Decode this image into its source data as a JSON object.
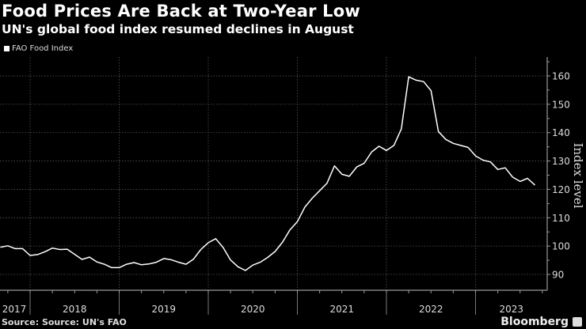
{
  "header": {
    "title": "Food Prices Are Back at Two-Year Low",
    "subtitle": "UN's global food index resumed declines in August"
  },
  "footer": {
    "source": "Source: Source: UN's FAO",
    "brand": "Bloomberg"
  },
  "colors": {
    "background": "#000000",
    "line": "#ffffff",
    "grid": "#555555",
    "axis": "#888888"
  },
  "chart_data": {
    "type": "line",
    "title": "Food Prices Are Back at Two-Year Low",
    "subtitle": "UN's global food index resumed declines in August",
    "legend": {
      "entries": [
        "FAO Food Index"
      ],
      "placement": "top-left"
    },
    "ylabel": "Index level",
    "ylim": [
      85,
      165
    ],
    "y_ticks": [
      90,
      100,
      110,
      120,
      130,
      140,
      150,
      160
    ],
    "y_axis_side": "right",
    "x_tick_labels": [
      "2017",
      "2018",
      "2019",
      "2020",
      "2021",
      "2022",
      "2023"
    ],
    "grid": true,
    "series": [
      {
        "name": "FAO Food Index",
        "start": "2017-08",
        "frequency": "monthly",
        "values": [
          99.6,
          100.1,
          99.1,
          99.1,
          96.7,
          97.0,
          98.0,
          99.3,
          98.8,
          98.9,
          97.1,
          95.3,
          96.1,
          94.4,
          93.6,
          92.4,
          92.4,
          93.6,
          94.2,
          93.4,
          93.7,
          94.3,
          95.6,
          95.2,
          94.3,
          93.6,
          95.4,
          98.8,
          101.2,
          102.6,
          99.5,
          95.1,
          92.7,
          91.4,
          93.3,
          94.3,
          96.0,
          98.1,
          101.4,
          105.7,
          108.6,
          113.7,
          116.9,
          119.5,
          122.2,
          128.3,
          125.3,
          124.6,
          127.9,
          129.2,
          133.2,
          135.2,
          133.7,
          135.5,
          141.3,
          159.7,
          158.5,
          158.0,
          154.8,
          140.4,
          137.6,
          136.2,
          135.5,
          134.8,
          131.8,
          130.3,
          129.7,
          127.0,
          127.6,
          124.3,
          122.8,
          123.9,
          121.5
        ]
      }
    ]
  }
}
